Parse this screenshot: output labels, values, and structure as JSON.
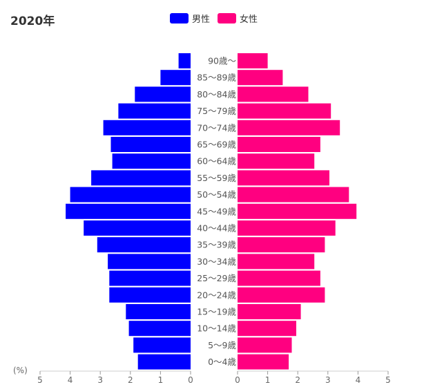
{
  "chart_data": {
    "type": "bar",
    "orientation": "horizontal",
    "layout": "population-pyramid",
    "title": "2020年",
    "unit_label": "(%)",
    "categories": [
      "90歳〜",
      "85〜89歳",
      "80〜84歳",
      "75〜79歳",
      "70〜74歳",
      "65〜69歳",
      "60〜64歳",
      "55〜59歳",
      "50〜54歳",
      "45〜49歳",
      "40〜44歳",
      "35〜39歳",
      "30〜34歳",
      "25〜29歳",
      "20〜24歳",
      "15〜19歳",
      "10〜14歳",
      "5〜9歳",
      "0〜4歳"
    ],
    "series": [
      {
        "name": "男性",
        "color": "#0000ff",
        "values": [
          0.4,
          1.0,
          1.85,
          2.4,
          2.9,
          2.65,
          2.6,
          3.3,
          4.0,
          4.15,
          3.55,
          3.1,
          2.75,
          2.7,
          2.7,
          2.15,
          2.05,
          1.9,
          1.75
        ]
      },
      {
        "name": "女性",
        "color": "#ff0080",
        "values": [
          1.0,
          1.5,
          2.35,
          3.1,
          3.4,
          2.75,
          2.55,
          3.05,
          3.7,
          3.95,
          3.25,
          2.9,
          2.55,
          2.75,
          2.9,
          2.1,
          1.95,
          1.8,
          1.7
        ]
      }
    ],
    "xlim": [
      0,
      5
    ],
    "x_ticks_left": [
      "5",
      "4",
      "3",
      "2",
      "1",
      "0"
    ],
    "x_ticks_right": [
      "0",
      "1",
      "2",
      "3",
      "4",
      "5"
    ],
    "legend_position": "top-center",
    "grid": false
  }
}
